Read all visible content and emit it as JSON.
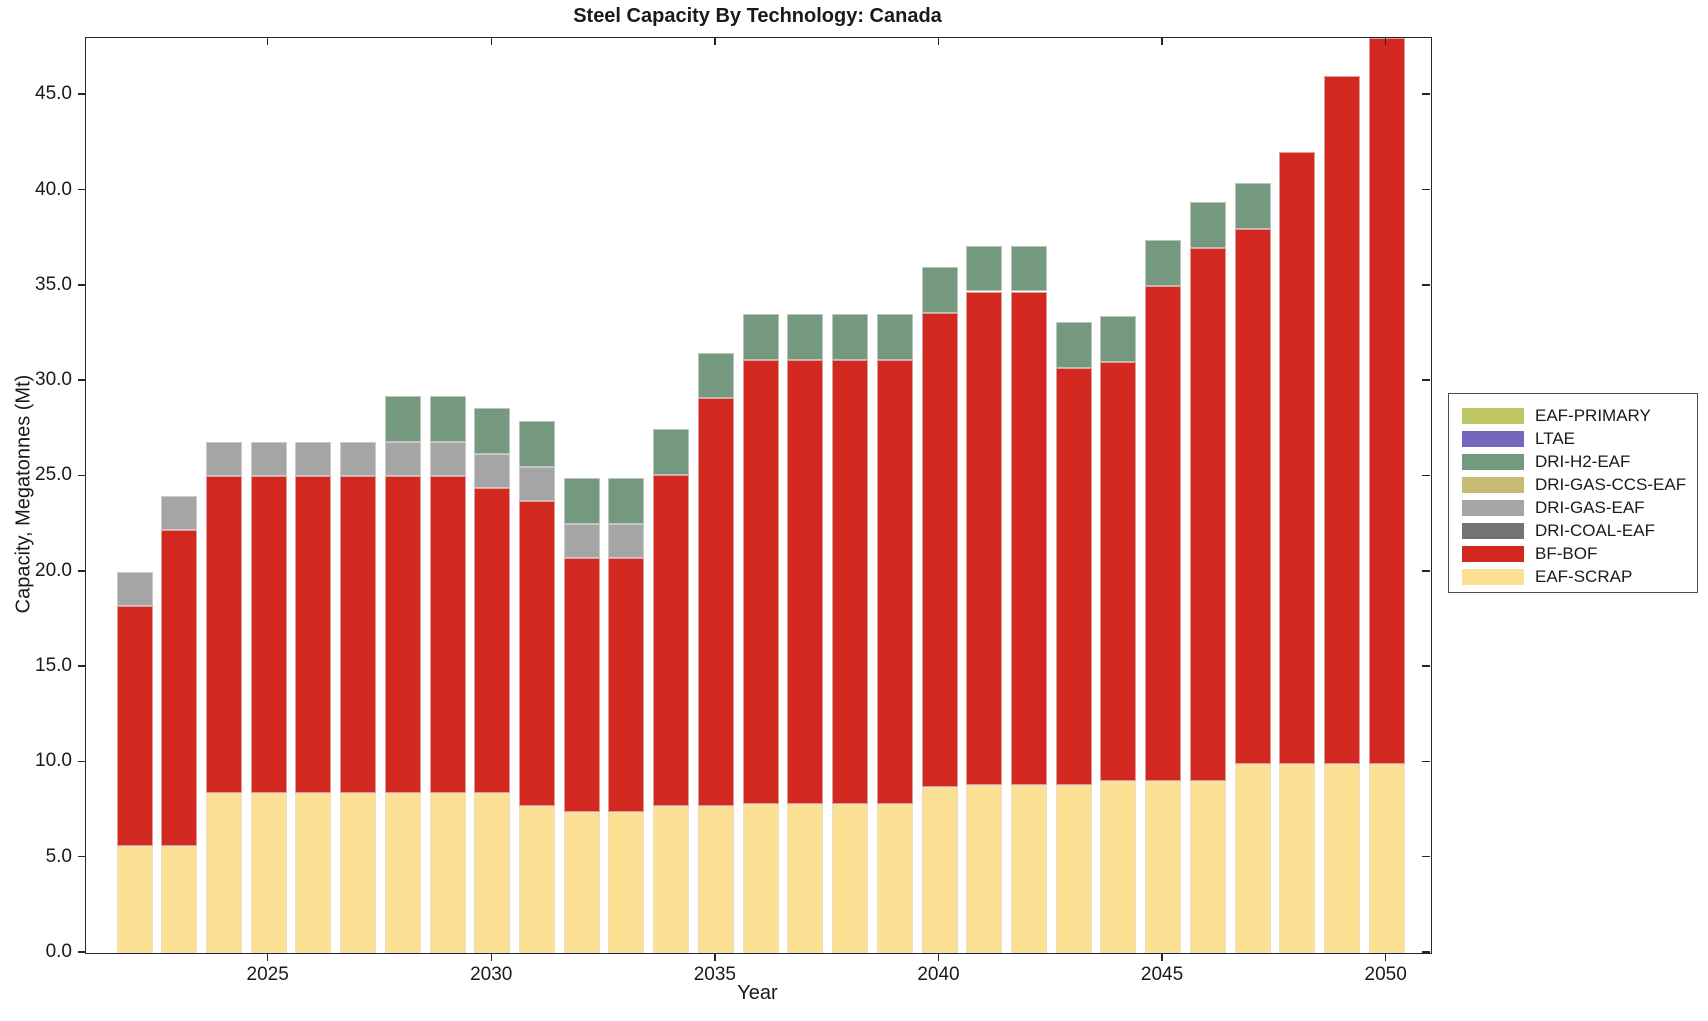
{
  "title": "Steel Capacity By Technology: Canada",
  "axes": {
    "xlabel": "Year",
    "ylabel": "Capacity, Megatonnes (Mt)",
    "ylim": [
      0,
      48
    ],
    "ytick_values": [
      0,
      5,
      10,
      15,
      20,
      25,
      30,
      35,
      40,
      45
    ],
    "ytick_labels": [
      "0.0",
      "5.0",
      "10.0",
      "15.0",
      "20.0",
      "25.0",
      "30.0",
      "35.0",
      "40.0",
      "45.0"
    ],
    "xtick_values": [
      2025,
      2030,
      2035,
      2040,
      2045,
      2050
    ],
    "xtick_labels": [
      "2025",
      "2030",
      "2035",
      "2040",
      "2045",
      "2050"
    ],
    "grid": false
  },
  "legend": {
    "position": "right-outside",
    "items": [
      {
        "label": "EAF-PRIMARY",
        "color": "#BEC763"
      },
      {
        "label": "LTAE",
        "color": "#7367BE"
      },
      {
        "label": "DRI-H2-EAF",
        "color": "#75997E"
      },
      {
        "label": "DRI-GAS-CCS-EAF",
        "color": "#C7BA72"
      },
      {
        "label": "DRI-GAS-EAF",
        "color": "#A5A5A5"
      },
      {
        "label": "DRI-COAL-EAF",
        "color": "#737373"
      },
      {
        "label": "BF-BOF",
        "color": "#D2281F"
      },
      {
        "label": "EAF-SCRAP",
        "color": "#FBDF92"
      }
    ]
  },
  "chart_data": {
    "type": "bar",
    "stacked": true,
    "title": "Steel Capacity By Technology: Canada",
    "xlabel": "Year",
    "ylabel": "Capacity, Megatonnes (Mt)",
    "ylim": [
      0,
      48
    ],
    "x": [
      2022,
      2023,
      2024,
      2025,
      2026,
      2027,
      2028,
      2029,
      2030,
      2031,
      2032,
      2033,
      2034,
      2035,
      2036,
      2037,
      2038,
      2039,
      2040,
      2041,
      2042,
      2043,
      2044,
      2045,
      2046,
      2047,
      2048,
      2049,
      2050
    ],
    "series_stack_order": "bottom to top",
    "series": [
      {
        "name": "EAF-SCRAP",
        "color": "#FBDF92",
        "values": [
          5.6,
          5.6,
          8.4,
          8.4,
          8.4,
          8.4,
          8.4,
          8.4,
          8.4,
          7.7,
          7.4,
          7.4,
          7.7,
          7.7,
          7.8,
          7.8,
          7.8,
          7.8,
          8.7,
          8.8,
          8.8,
          8.8,
          9.0,
          9.0,
          9.0,
          9.9,
          9.9,
          9.9,
          9.9
        ]
      },
      {
        "name": "BF-BOF",
        "color": "#D2281F",
        "values": [
          12.6,
          16.6,
          16.6,
          16.6,
          16.6,
          16.6,
          16.6,
          16.6,
          16.0,
          16.0,
          13.3,
          13.3,
          17.4,
          21.4,
          23.3,
          23.3,
          23.3,
          23.3,
          24.9,
          25.9,
          25.9,
          21.9,
          22.0,
          26.0,
          28.0,
          28.1,
          32.1,
          36.1,
          38.3
        ]
      },
      {
        "name": "DRI-COAL-EAF",
        "color": "#737373",
        "values": [
          0,
          0,
          0,
          0,
          0,
          0,
          0,
          0,
          0,
          0,
          0,
          0,
          0,
          0,
          0,
          0,
          0,
          0,
          0,
          0,
          0,
          0,
          0,
          0,
          0,
          0,
          0,
          0,
          0
        ]
      },
      {
        "name": "DRI-GAS-EAF",
        "color": "#A5A5A5",
        "values": [
          1.8,
          1.8,
          1.8,
          1.8,
          1.8,
          1.8,
          1.8,
          1.8,
          1.8,
          1.8,
          1.8,
          1.8,
          0,
          0,
          0,
          0,
          0,
          0,
          0,
          0,
          0,
          0,
          0,
          0,
          0,
          0,
          0,
          0,
          0
        ]
      },
      {
        "name": "DRI-GAS-CCS-EAF",
        "color": "#C7BA72",
        "values": [
          0,
          0,
          0,
          0,
          0,
          0,
          0,
          0,
          0,
          0,
          0,
          0,
          0,
          0,
          0,
          0,
          0,
          0,
          0,
          0,
          0,
          0,
          0,
          0,
          0,
          0,
          0,
          0,
          0
        ]
      },
      {
        "name": "DRI-H2-EAF",
        "color": "#75997E",
        "values": [
          0,
          0,
          0,
          0,
          0,
          0,
          2.4,
          2.4,
          2.4,
          2.4,
          2.4,
          2.4,
          2.4,
          2.4,
          2.4,
          2.4,
          2.4,
          2.4,
          2.4,
          2.4,
          2.4,
          2.4,
          2.4,
          2.4,
          2.4,
          2.4,
          0,
          0,
          0
        ]
      },
      {
        "name": "LTAE",
        "color": "#7367BE",
        "values": [
          0,
          0,
          0,
          0,
          0,
          0,
          0,
          0,
          0,
          0,
          0,
          0,
          0,
          0,
          0,
          0,
          0,
          0,
          0,
          0,
          0,
          0,
          0,
          0,
          0,
          0,
          0,
          0,
          0
        ]
      },
      {
        "name": "EAF-PRIMARY",
        "color": "#BEC763",
        "values": [
          0,
          0,
          0,
          0,
          0,
          0,
          0,
          0,
          0,
          0,
          0,
          0,
          0,
          0,
          0,
          0,
          0,
          0,
          0,
          0,
          0,
          0,
          0,
          0,
          0,
          0,
          0,
          0,
          0
        ]
      }
    ],
    "note": "2050 bar is clipped at the top of the axis (y-axis max 48.0)"
  }
}
